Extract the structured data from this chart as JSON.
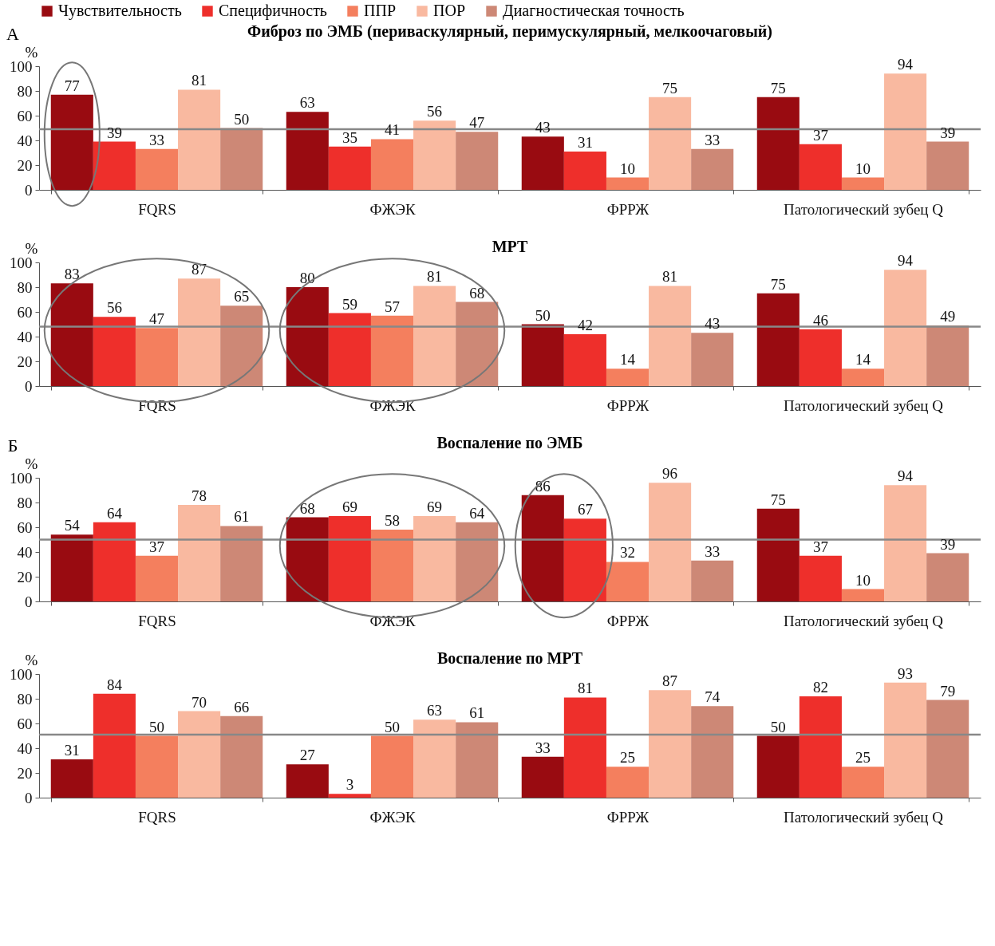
{
  "chart_data": [
    {
      "type": "bar",
      "title": "Фиброз по ЭМБ (периваскулярный, перимускулярный, мелкоочаговый)",
      "ylabel": "%",
      "annotations": [
        "А"
      ],
      "categories": [
        "FQRS",
        "ФЖЭК",
        "ФРРЖ",
        "Патологический зубец Q"
      ],
      "ylim": [
        0,
        100
      ],
      "yticks": [
        0,
        20,
        40,
        60,
        80,
        100
      ],
      "data_labels": true,
      "legend": "top",
      "grid": false,
      "series": [
        {
          "name": "Чувствительность",
          "color": "#990b11",
          "values": [
            77,
            63,
            43,
            75
          ]
        },
        {
          "name": "Специфичность",
          "color": "#ee2f2b",
          "values": [
            39,
            35,
            31,
            37
          ]
        },
        {
          "name": "ППР",
          "color": "#f47f5e",
          "values": [
            33,
            41,
            10,
            10
          ]
        },
        {
          "name": "ПОР",
          "color": "#f9b9a0",
          "values": [
            81,
            56,
            75,
            94
          ]
        },
        {
          "name": "Диагностическая точность",
          "color": "#cd8876",
          "values": [
            50,
            47,
            33,
            39
          ]
        }
      ],
      "ref_lines": [
        {
          "axis": "y",
          "value": 49,
          "color": "#888888"
        }
      ]
    },
    {
      "type": "bar",
      "title": "МРТ",
      "ylabel": "%",
      "categories": [
        "FQRS",
        "ФЖЭК",
        "ФРРЖ",
        "Патологический зубец Q"
      ],
      "ylim": [
        0,
        100
      ],
      "yticks": [
        0,
        20,
        40,
        60,
        80,
        100
      ],
      "data_labels": true,
      "grid": false,
      "series": [
        {
          "name": "Чувствительность",
          "color": "#990b11",
          "values": [
            83,
            80,
            50,
            75
          ]
        },
        {
          "name": "Специфичность",
          "color": "#ee2f2b",
          "values": [
            56,
            59,
            42,
            46
          ]
        },
        {
          "name": "ППР",
          "color": "#f47f5e",
          "values": [
            47,
            57,
            14,
            14
          ]
        },
        {
          "name": "ПОР",
          "color": "#f9b9a0",
          "values": [
            87,
            81,
            81,
            94
          ]
        },
        {
          "name": "Диагностическая точность",
          "color": "#cd8876",
          "values": [
            65,
            68,
            43,
            49
          ]
        }
      ],
      "ref_lines": [
        {
          "axis": "y",
          "value": 48,
          "color": "#888888"
        }
      ]
    },
    {
      "type": "bar",
      "title": "Воспаление по ЭМБ",
      "ylabel": "%",
      "annotations": [
        "Б"
      ],
      "categories": [
        "FQRS",
        "ФЖЭК",
        "ФРРЖ",
        "Патологический зубец Q"
      ],
      "ylim": [
        0,
        100
      ],
      "yticks": [
        0,
        20,
        40,
        60,
        80,
        100
      ],
      "data_labels": true,
      "grid": false,
      "series": [
        {
          "name": "Чувствительность",
          "color": "#990b11",
          "values": [
            54,
            68,
            86,
            75
          ]
        },
        {
          "name": "Специфичность",
          "color": "#ee2f2b",
          "values": [
            64,
            69,
            67,
            37
          ]
        },
        {
          "name": "ППР",
          "color": "#f47f5e",
          "values": [
            37,
            58,
            32,
            10
          ]
        },
        {
          "name": "ПОР",
          "color": "#f9b9a0",
          "values": [
            78,
            69,
            96,
            94
          ]
        },
        {
          "name": "Диагностическая точность",
          "color": "#cd8876",
          "values": [
            61,
            64,
            33,
            39
          ]
        }
      ],
      "ref_lines": [
        {
          "axis": "y",
          "value": 50,
          "color": "#888888"
        }
      ]
    },
    {
      "type": "bar",
      "title": "Воспаление по МРТ",
      "ylabel": "%",
      "categories": [
        "FQRS",
        "ФЖЭК",
        "ФРРЖ",
        "Патологический зубец Q"
      ],
      "ylim": [
        0,
        100
      ],
      "yticks": [
        0,
        20,
        40,
        60,
        80,
        100
      ],
      "data_labels": true,
      "grid": false,
      "series": [
        {
          "name": "Чувствительность",
          "color": "#990b11",
          "values": [
            31,
            27,
            33,
            50
          ]
        },
        {
          "name": "Специфичность",
          "color": "#ee2f2b",
          "values": [
            84,
            3,
            81,
            82
          ]
        },
        {
          "name": "ППР",
          "color": "#f47f5e",
          "values": [
            50,
            50,
            25,
            25
          ]
        },
        {
          "name": "ПОР",
          "color": "#f9b9a0",
          "values": [
            70,
            63,
            87,
            93
          ]
        },
        {
          "name": "Диагностическая точность",
          "color": "#cd8876",
          "values": [
            66,
            61,
            74,
            79
          ]
        }
      ],
      "ref_lines": [
        {
          "axis": "y",
          "value": 51,
          "color": "#888888"
        }
      ]
    }
  ]
}
